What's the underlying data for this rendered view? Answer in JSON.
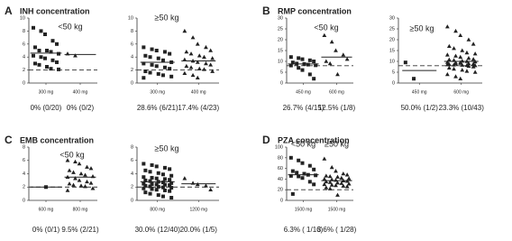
{
  "chart_data": [
    {
      "type": "strip",
      "panel": "A",
      "title": "INH concentration",
      "subtitle": "<50 kg",
      "ylim": [
        0,
        10
      ],
      "yticks": [
        0,
        2,
        4,
        6,
        8,
        10
      ],
      "threshold": 2,
      "color": "#222222",
      "groups": [
        {
          "category": "300 mg",
          "marker": "square",
          "median": 4.6,
          "annotation": "0% (0/20)",
          "values": [
            8.5,
            8,
            7.5,
            6.5,
            6,
            5.5,
            5,
            5,
            4.8,
            4.5,
            4.2,
            4,
            3.8,
            3.5,
            3.2,
            3,
            2.8,
            2.5,
            2.2,
            2.1
          ]
        },
        {
          "category": "400 mg",
          "marker": "triangle",
          "median": 4.4,
          "annotation": "0% (0/2)",
          "values": [
            4.5,
            4.2
          ]
        }
      ]
    },
    {
      "type": "strip",
      "subtitle": "≥50 kg",
      "ylim": [
        0,
        10
      ],
      "yticks": [
        0,
        2,
        4,
        6,
        8,
        10
      ],
      "threshold": 2,
      "color": "#222222",
      "groups": [
        {
          "category": "300 mg",
          "marker": "square",
          "median": 3.2,
          "annotation": "28.6% (6/21)",
          "values": [
            5.5,
            5.2,
            5,
            4.8,
            4.5,
            4.2,
            4,
            3.8,
            3.5,
            3.2,
            3,
            2.8,
            2.6,
            2.4,
            2.2,
            1.8,
            1.6,
            1.4,
            1.2,
            1,
            0.8
          ]
        },
        {
          "category": "400 mg",
          "marker": "triangle",
          "median": 3.4,
          "annotation": "17.4% (4/23)",
          "values": [
            8,
            7,
            6,
            5.5,
            5,
            4.8,
            4.5,
            4.2,
            4,
            3.8,
            3.6,
            3.4,
            3.2,
            3,
            2.8,
            2.6,
            2.4,
            2.2,
            2.1,
            1.8,
            1.5,
            1.2,
            0.8
          ]
        }
      ]
    },
    {
      "type": "strip",
      "panel": "B",
      "title": "RMP concentration",
      "subtitle": "<50 kg",
      "ylim": [
        0,
        30
      ],
      "yticks": [
        0,
        5,
        10,
        15,
        20,
        25,
        30
      ],
      "threshold": 8,
      "color": "#222222",
      "groups": [
        {
          "category": "450 mg",
          "marker": "square",
          "median": 8.8,
          "annotation": "26.7% (4/15)",
          "values": [
            12,
            11.5,
            11,
            10.5,
            10,
            9.5,
            9,
            8.8,
            8.5,
            8.2,
            8.1,
            7,
            6,
            4,
            2
          ]
        },
        {
          "category": "600 mg",
          "marker": "triangle",
          "median": 12,
          "annotation": "12.5% (1/8)",
          "values": [
            22,
            19,
            15,
            13,
            11,
            10,
            9,
            4
          ]
        }
      ]
    },
    {
      "type": "strip",
      "subtitle": "≥50 kg",
      "ylim": [
        0,
        30
      ],
      "yticks": [
        0,
        5,
        10,
        15,
        20,
        25,
        30
      ],
      "threshold": 8,
      "color": "#222222",
      "groups": [
        {
          "category": "450 mg",
          "marker": "square",
          "median": 5.8,
          "annotation": "50.0% (1/2)",
          "values": [
            9.5,
            2
          ]
        },
        {
          "category": "600 mg",
          "marker": "triangle",
          "median": 10,
          "annotation": "23.3% (10/43)",
          "values": [
            26,
            24,
            22,
            20,
            18,
            17,
            16,
            15,
            14,
            13.5,
            13,
            12.5,
            12,
            11.5,
            11,
            10.8,
            10.5,
            10.2,
            10,
            9.8,
            9.6,
            9.4,
            9.2,
            9,
            8.8,
            8.6,
            8.4,
            8.3,
            8.2,
            8.1,
            8.5,
            8.9,
            9.5,
            7.8,
            7.5,
            7,
            6.5,
            6,
            5.5,
            5,
            4,
            3,
            2
          ]
        }
      ]
    },
    {
      "type": "strip",
      "panel": "C",
      "title": "EMB concentration",
      "subtitle": "<50 kg",
      "ylim": [
        0,
        8
      ],
      "yticks": [
        0,
        2,
        4,
        6,
        8
      ],
      "threshold": 2,
      "color": "#222222",
      "groups": [
        {
          "category": "600 mg",
          "marker": "square",
          "median": 2,
          "annotation": "0% (0/1)",
          "values": [
            2
          ]
        },
        {
          "category": "800 mg",
          "marker": "triangle",
          "median": 3.5,
          "annotation": "9.5% (2/21)",
          "values": [
            6,
            5.8,
            5.5,
            5,
            4.8,
            4.5,
            4.2,
            4,
            3.8,
            3.6,
            3.5,
            3.3,
            3,
            2.8,
            2.6,
            2.5,
            2.3,
            2.2,
            2.1,
            1.8,
            1.5
          ]
        }
      ]
    },
    {
      "type": "strip",
      "subtitle": "≥50 kg",
      "ylim": [
        0,
        8
      ],
      "yticks": [
        0,
        2,
        4,
        6,
        8
      ],
      "threshold": 2,
      "color": "#222222",
      "groups": [
        {
          "category": "800 mg",
          "marker": "square",
          "median": 2.8,
          "annotation": "30.0% (12/40)",
          "values": [
            5.5,
            5.3,
            5.1,
            4.9,
            4.7,
            4.5,
            4.3,
            4.1,
            3.9,
            3.7,
            3.5,
            3.4,
            3.3,
            3.2,
            3.1,
            3,
            2.9,
            2.8,
            2.7,
            2.6,
            2.5,
            2.45,
            2.4,
            2.35,
            2.3,
            2.2,
            2.1,
            2.05,
            1.95,
            1.9,
            1.8,
            1.7,
            1.6,
            1.5,
            1.4,
            1.2,
            1,
            0.8,
            0.6,
            0.4
          ]
        },
        {
          "category": "1200 mg",
          "marker": "triangle",
          "median": 2.5,
          "annotation": "20.0% (1/5)",
          "values": [
            3.3,
            2.6,
            2.4,
            2.2,
            1.6
          ]
        }
      ]
    },
    {
      "type": "strip",
      "panel": "D",
      "title": "PZA concentration",
      "ylim": [
        0,
        100
      ],
      "yticks": [
        0,
        20,
        40,
        60,
        80,
        100
      ],
      "threshold": 20,
      "color": "#222222",
      "groups": [
        {
          "category": "1500 mg",
          "group_title": "<50 kg",
          "marker": "square",
          "median": 48,
          "annotation": "6.3% ( 1/16)",
          "values": [
            80,
            75,
            70,
            65,
            58,
            55,
            52,
            50,
            48,
            47,
            46,
            45,
            42,
            35,
            30,
            12
          ]
        },
        {
          "category": "1500 mg",
          "group_title": "≥50 kg",
          "marker": "triangle",
          "median": 37,
          "annotation": "3.6% ( 1/28)",
          "values": [
            78,
            62,
            55,
            50,
            48,
            46,
            45,
            44,
            42,
            41,
            40,
            39,
            38,
            37,
            36,
            35,
            34,
            33,
            32,
            31,
            30,
            29,
            28,
            27,
            26,
            24,
            22,
            10
          ]
        }
      ]
    }
  ]
}
